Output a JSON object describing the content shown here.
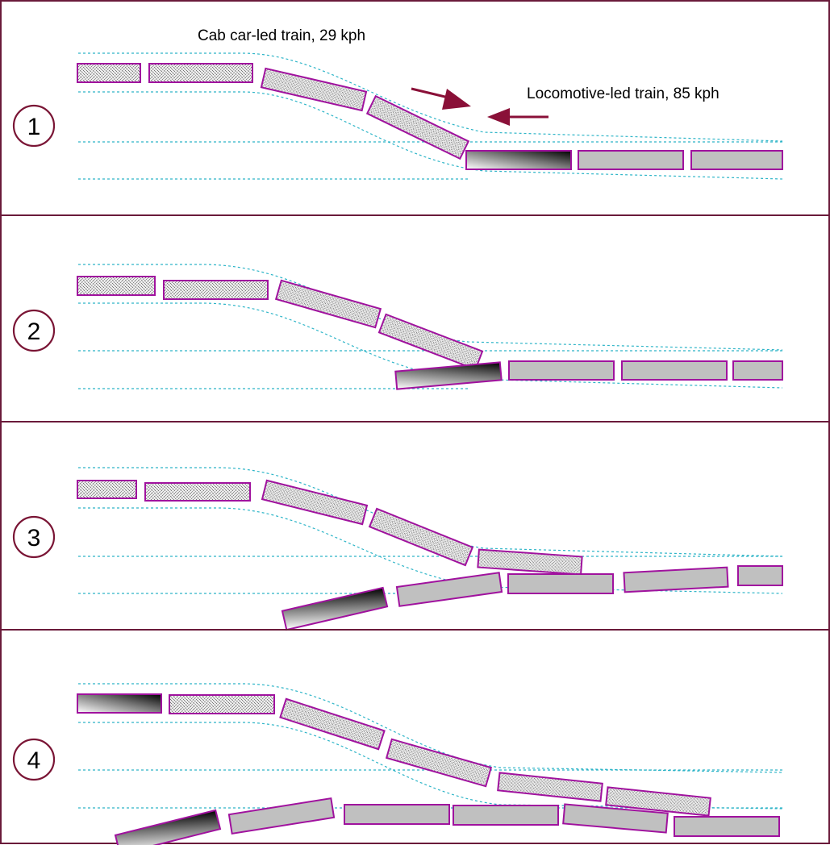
{
  "colors": {
    "panel_border": "#6a1a3a",
    "step_circle": "#7a1535",
    "car_outline": "#a0129e",
    "passenger_car_fill": "#c0c0c0",
    "track": "#2eb5c8",
    "arrow": "#8a1038"
  },
  "captions": {
    "cab_car_train": "Cab car-led train, 29 kph",
    "loco_train": "Locomotive-led train, 85 kph"
  },
  "panels": [
    {
      "step": "1"
    },
    {
      "step": "2"
    },
    {
      "step": "3"
    },
    {
      "step": "4"
    }
  ]
}
